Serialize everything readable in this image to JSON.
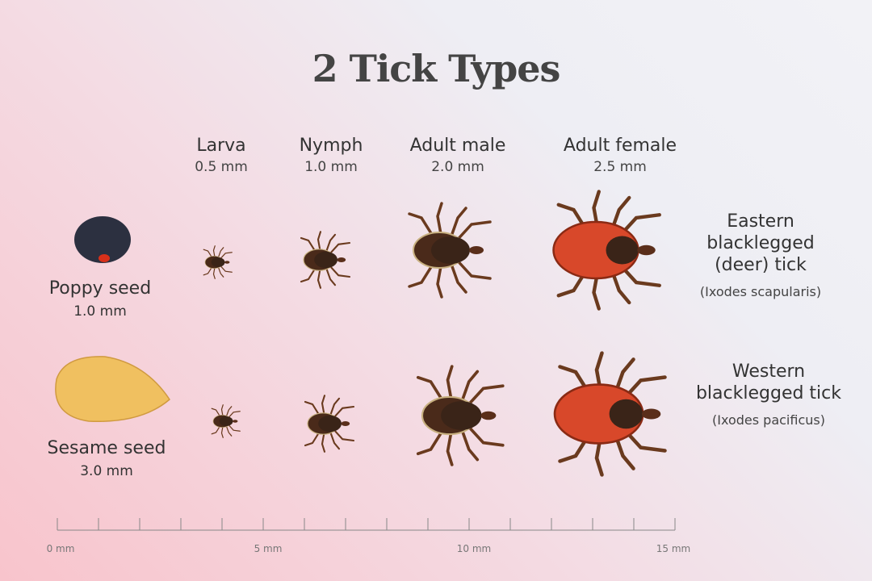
{
  "title": "2 Tick Types",
  "stages": [
    {
      "name": "Larva",
      "size": "0.5 mm",
      "mm": 0.5
    },
    {
      "name": "Nymph",
      "size": "1.0 mm",
      "mm": 1.0
    },
    {
      "name": "Adult male",
      "size": "2.0 mm",
      "mm": 2.0
    },
    {
      "name": "Adult female",
      "size": "2.5 mm",
      "mm": 2.5
    }
  ],
  "seeds": [
    {
      "name": "Poppy seed",
      "size": "1.0 mm",
      "color": "#2c3040"
    },
    {
      "name": "Sesame seed",
      "size": "3.0 mm",
      "color": "#f0c060"
    }
  ],
  "species": [
    {
      "name": "Eastern blacklegged (deer) tick",
      "latin": "(Ixodes scapularis)"
    },
    {
      "name": "Western blacklegged tick",
      "latin": "(Ixodes pacificus)"
    }
  ],
  "ruler": {
    "min": 0,
    "max": 15,
    "unit": "mm",
    "labels": [
      "0 mm",
      "5 mm",
      "10 mm",
      "15 mm"
    ]
  },
  "colors": {
    "tick_body": "#c8401e",
    "tick_scutum": "#3a2418",
    "tick_legs": "#6a3a1e",
    "female_body": "#d8482a"
  }
}
